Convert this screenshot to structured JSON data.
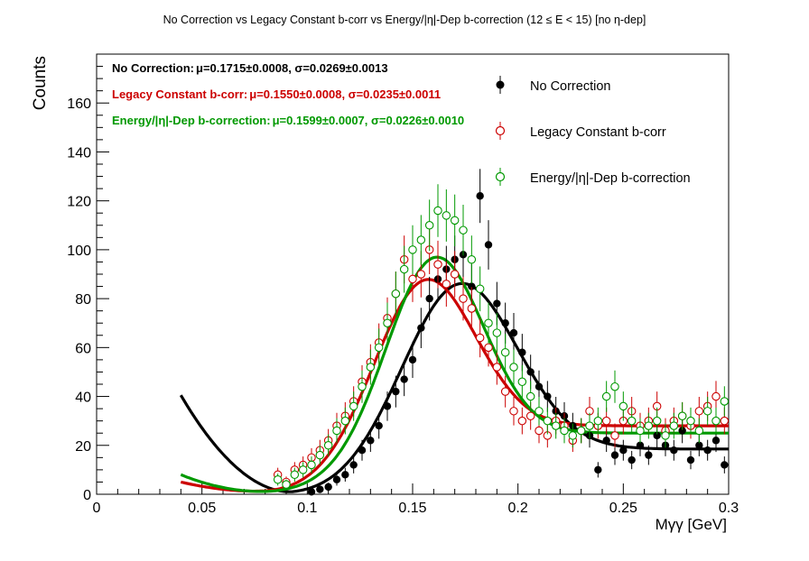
{
  "chart_data": {
    "type": "scatter",
    "title": "No Correction vs Legacy Constant b-corr vs Energy/|η|-Dep b-correction   (12 ≤ E < 15)   [no η-dep]",
    "xlabel": "Mγγ [GeV]",
    "ylabel": "Counts",
    "xlim": [
      0,
      0.3
    ],
    "ylim": [
      0,
      180
    ],
    "x_ticks": [
      "0",
      "0.05",
      "0.1",
      "0.15",
      "0.2",
      "0.25",
      "0.3"
    ],
    "y_ticks": [
      "0",
      "20",
      "40",
      "60",
      "80",
      "100",
      "120",
      "140",
      "160"
    ],
    "legend_position": "top-right",
    "stats": [
      {
        "label": "No Correction:",
        "value": "μ=0.1715±0.0008, σ=0.0269±0.0013",
        "color": "#000000"
      },
      {
        "label": "Legacy Constant b-corr:",
        "value": "μ=0.1550±0.0008, σ=0.0235±0.0011",
        "color": "#cc0000"
      },
      {
        "label": "Energy/|η|-Dep b-correction:",
        "value": "μ=0.1599±0.0007, σ=0.0226±0.0010",
        "color": "#009900"
      }
    ],
    "series": [
      {
        "name": "No Correction",
        "color": "#000000",
        "marker": "filled",
        "x": [
          0.102,
          0.106,
          0.11,
          0.114,
          0.118,
          0.122,
          0.126,
          0.13,
          0.134,
          0.138,
          0.142,
          0.146,
          0.15,
          0.154,
          0.158,
          0.162,
          0.166,
          0.17,
          0.174,
          0.178,
          0.182,
          0.186,
          0.19,
          0.194,
          0.198,
          0.202,
          0.206,
          0.21,
          0.214,
          0.218,
          0.222,
          0.226,
          0.23,
          0.234,
          0.238,
          0.242,
          0.246,
          0.25,
          0.254,
          0.258,
          0.262,
          0.266,
          0.27,
          0.274,
          0.278,
          0.282,
          0.286,
          0.29,
          0.294,
          0.298
        ],
        "y": [
          1,
          2,
          3,
          6,
          8,
          12,
          18,
          22,
          28,
          36,
          42,
          47,
          55,
          68,
          80,
          88,
          92,
          96,
          98,
          85,
          122,
          102,
          78,
          70,
          66,
          58,
          50,
          44,
          40,
          34,
          32,
          28,
          26,
          24,
          10,
          22,
          16,
          18,
          14,
          20,
          16,
          24,
          20,
          18,
          26,
          14,
          20,
          18,
          22,
          12
        ],
        "fit": {
          "amp": 73,
          "mean": 0.1715,
          "sigma": 0.0269,
          "bg_at_0.04": 40.5,
          "bg_min_x": 0.095,
          "bg_min": 0,
          "bg_tail": 18.5
        }
      },
      {
        "name": "Legacy Constant b-corr",
        "color": "#cc0000",
        "marker": "open",
        "x": [
          0.086,
          0.09,
          0.094,
          0.098,
          0.102,
          0.106,
          0.11,
          0.114,
          0.118,
          0.122,
          0.126,
          0.13,
          0.134,
          0.138,
          0.142,
          0.146,
          0.15,
          0.154,
          0.158,
          0.162,
          0.166,
          0.17,
          0.174,
          0.178,
          0.182,
          0.186,
          0.19,
          0.194,
          0.198,
          0.202,
          0.206,
          0.21,
          0.214,
          0.218,
          0.222,
          0.226,
          0.23,
          0.234,
          0.238,
          0.242,
          0.246,
          0.25,
          0.254,
          0.258,
          0.262,
          0.266,
          0.27,
          0.274,
          0.278,
          0.282,
          0.286,
          0.29,
          0.294,
          0.298
        ],
        "y": [
          8,
          5,
          10,
          12,
          15,
          18,
          22,
          28,
          32,
          38,
          46,
          54,
          62,
          72,
          82,
          96,
          88,
          90,
          100,
          94,
          86,
          90,
          80,
          76,
          64,
          60,
          52,
          42,
          34,
          30,
          32,
          26,
          24,
          30,
          28,
          22,
          26,
          34,
          28,
          30,
          24,
          30,
          34,
          28,
          30,
          36,
          26,
          30,
          32,
          28,
          34,
          36,
          40,
          30
        ],
        "fit": {
          "amp": 68,
          "mean": 0.155,
          "sigma": 0.0235,
          "bg_at_0.04": 5,
          "bg_min_x": 0.08,
          "bg_min": 1,
          "bg_tail": 28
        }
      },
      {
        "name": "Energy/|η|-Dep b-correction",
        "color": "#009900",
        "marker": "open",
        "x": [
          0.086,
          0.09,
          0.094,
          0.098,
          0.102,
          0.106,
          0.11,
          0.114,
          0.118,
          0.122,
          0.126,
          0.13,
          0.134,
          0.138,
          0.142,
          0.146,
          0.15,
          0.154,
          0.158,
          0.162,
          0.166,
          0.17,
          0.174,
          0.178,
          0.182,
          0.186,
          0.19,
          0.194,
          0.198,
          0.202,
          0.206,
          0.21,
          0.214,
          0.218,
          0.222,
          0.226,
          0.23,
          0.234,
          0.238,
          0.242,
          0.246,
          0.25,
          0.254,
          0.258,
          0.262,
          0.266,
          0.27,
          0.274,
          0.278,
          0.282,
          0.286,
          0.29,
          0.294,
          0.298
        ],
        "y": [
          6,
          4,
          8,
          10,
          12,
          16,
          20,
          26,
          30,
          36,
          44,
          52,
          60,
          70,
          82,
          92,
          100,
          104,
          110,
          116,
          114,
          112,
          108,
          96,
          84,
          70,
          66,
          58,
          52,
          46,
          40,
          34,
          30,
          28,
          26,
          24,
          26,
          28,
          30,
          40,
          44,
          36,
          30,
          26,
          28,
          30,
          24,
          28,
          32,
          30,
          26,
          34,
          30,
          38
        ],
        "fit": {
          "amp": 78,
          "mean": 0.1599,
          "sigma": 0.0226,
          "bg_at_0.04": 8,
          "bg_min_x": 0.08,
          "bg_min": 1,
          "bg_tail": 25
        }
      }
    ]
  }
}
